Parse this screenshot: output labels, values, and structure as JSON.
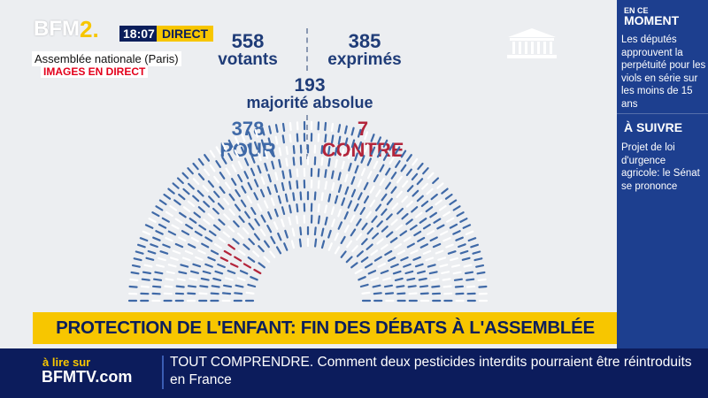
{
  "branding": {
    "channel": "BFM",
    "channel_suffix": "2.",
    "time": "18:07",
    "live_label": "DIRECT",
    "location": "Assemblée nationale (Paris)",
    "live_images": "IMAGES EN DIRECT"
  },
  "vote": {
    "votants_count": "558",
    "votants_label": "votants",
    "exprimes_count": "385",
    "exprimes_label": "exprimés",
    "majorite_count": "193",
    "majorite_label": "majorité absolue",
    "pour_count": "378",
    "pour_label": "POUR",
    "contre_count": "7",
    "contre_label": "CONTRE",
    "pour_seats": 378,
    "contre_seats": 7,
    "colors": {
      "pour": "#3f69a7",
      "contre": "#b3243a",
      "empty": "#ffffff"
    }
  },
  "sidebar": {
    "now_kicker": "EN CE",
    "now_title": "MOMENT",
    "now_text": "Les députés approuvent la perpétuité pour les viols en série sur les moins de 15 ans",
    "next_title": "À SUIVRE",
    "next_text": "Projet de loi d'urgence agricole: le Sénat se prononce"
  },
  "headline": "PROTECTION DE L'ENFANT: FIN DES DÉBATS À L'ASSEMBLÉE",
  "ticker": {
    "brand": "à lire sur",
    "site": "BFMTV.com",
    "text": "TOUT COMPRENDRE. Comment deux pesticides interdits pourraient être réintroduits en France"
  },
  "icons": {
    "building": "assembly-building-icon"
  }
}
